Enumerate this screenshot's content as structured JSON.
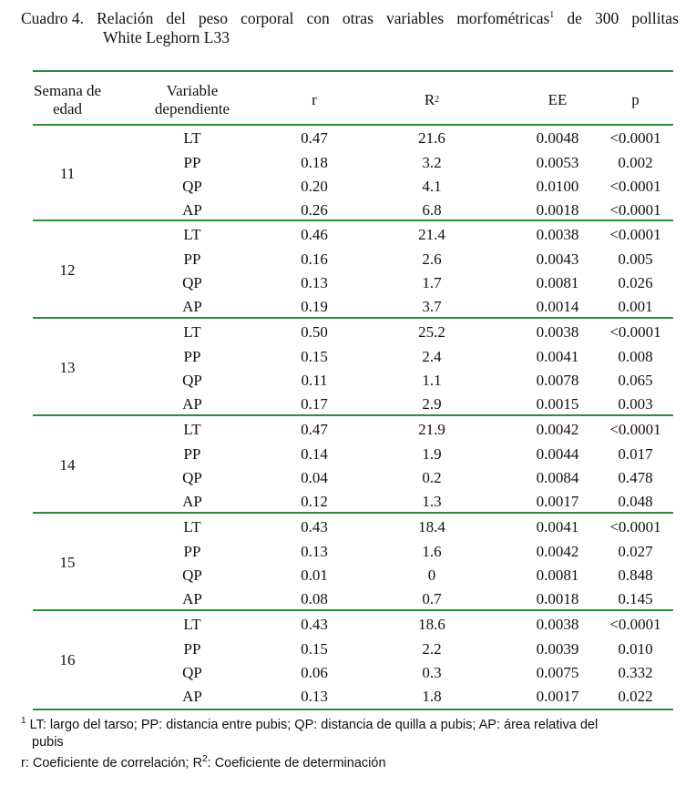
{
  "caption": {
    "label": "Cuadro 4.",
    "line1_words": [
      "Relación",
      "del",
      "peso",
      "corporal",
      "con",
      "otras",
      "variables",
      "morfométricas"
    ],
    "sup": "1",
    "line1_tail": [
      "de",
      "300",
      "pollitas"
    ],
    "line2": "White Leghorn L33"
  },
  "header": {
    "week_line1": "Semana de",
    "week_line2": "edad",
    "var_line1": "Variable",
    "var_line2": "dependiente",
    "r": "r",
    "r2_base": "R",
    "r2_sup": "2",
    "ee": "EE",
    "p": "p"
  },
  "groups": [
    {
      "week": "11",
      "rows": [
        {
          "var": "LT",
          "r": "0.47",
          "r2": "21.6",
          "ee": "0.0048",
          "p": "<0.0001"
        },
        {
          "var": "PP",
          "r": "0.18",
          "r2": "3.2",
          "ee": "0.0053",
          "p": "0.002"
        },
        {
          "var": "QP",
          "r": "0.20",
          "r2": "4.1",
          "ee": "0.0100",
          "p": "<0.0001"
        },
        {
          "var": "AP",
          "r": "0.26",
          "r2": "6.8",
          "ee": "0.0018",
          "p": "<0.0001"
        }
      ]
    },
    {
      "week": "12",
      "rows": [
        {
          "var": "LT",
          "r": "0.46",
          "r2": "21.4",
          "ee": "0.0038",
          "p": "<0.0001"
        },
        {
          "var": "PP",
          "r": "0.16",
          "r2": "2.6",
          "ee": "0.0043",
          "p": "0.005"
        },
        {
          "var": "QP",
          "r": "0.13",
          "r2": "1.7",
          "ee": "0.0081",
          "p": "0.026"
        },
        {
          "var": "AP",
          "r": "0.19",
          "r2": "3.7",
          "ee": "0.0014",
          "p": "0.001"
        }
      ]
    },
    {
      "week": "13",
      "rows": [
        {
          "var": "LT",
          "r": "0.50",
          "r2": "25.2",
          "ee": "0.0038",
          "p": "<0.0001"
        },
        {
          "var": "PP",
          "r": "0.15",
          "r2": "2.4",
          "ee": "0.0041",
          "p": "0.008"
        },
        {
          "var": "QP",
          "r": "0.11",
          "r2": "1.1",
          "ee": "0.0078",
          "p": "0.065"
        },
        {
          "var": "AP",
          "r": "0.17",
          "r2": "2.9",
          "ee": "0.0015",
          "p": "0.003"
        }
      ]
    },
    {
      "week": "14",
      "rows": [
        {
          "var": "LT",
          "r": "0.47",
          "r2": "21.9",
          "ee": "0.0042",
          "p": "<0.0001"
        },
        {
          "var": "PP",
          "r": "0.14",
          "r2": "1.9",
          "ee": "0.0044",
          "p": "0.017"
        },
        {
          "var": "QP",
          "r": "0.04",
          "r2": "0.2",
          "ee": "0.0084",
          "p": "0.478"
        },
        {
          "var": "AP",
          "r": "0.12",
          "r2": "1.3",
          "ee": "0.0017",
          "p": "0.048"
        }
      ]
    },
    {
      "week": "15",
      "rows": [
        {
          "var": "LT",
          "r": "0.43",
          "r2": "18.4",
          "ee": "0.0041",
          "p": "<0.0001"
        },
        {
          "var": "PP",
          "r": "0.13",
          "r2": "1.6",
          "ee": "0.0042",
          "p": "0.027"
        },
        {
          "var": "QP",
          "r": "0.01",
          "r2": "0",
          "ee": "0.0081",
          "p": "0.848"
        },
        {
          "var": "AP",
          "r": "0.08",
          "r2": "0.7",
          "ee": "0.0018",
          "p": "0.145"
        }
      ]
    },
    {
      "week": "16",
      "rows": [
        {
          "var": "LT",
          "r": "0.43",
          "r2": "18.6",
          "ee": "0.0038",
          "p": "<0.0001"
        },
        {
          "var": "PP",
          "r": "0.15",
          "r2": "2.2",
          "ee": "0.0039",
          "p": "0.010"
        },
        {
          "var": "QP",
          "r": "0.06",
          "r2": "0.3",
          "ee": "0.0075",
          "p": "0.332"
        },
        {
          "var": "AP",
          "r": "0.13",
          "r2": "1.8",
          "ee": "0.0017",
          "p": "0.022"
        }
      ]
    }
  ],
  "footnotes": {
    "fn1_sup": "1",
    "fn1_text": " LT: largo del tarso; PP: distancia entre pubis; QP: distancia de quilla a pubis; AP: área relativa del",
    "fn1_text2": "pubis",
    "fn2_a": "r: Coeficiente de correlación; R",
    "fn2_sup": "2",
    "fn2_b": ": Coeficiente de determinación"
  },
  "colors": {
    "rule": "#2e8b3a",
    "text": "#111111"
  }
}
